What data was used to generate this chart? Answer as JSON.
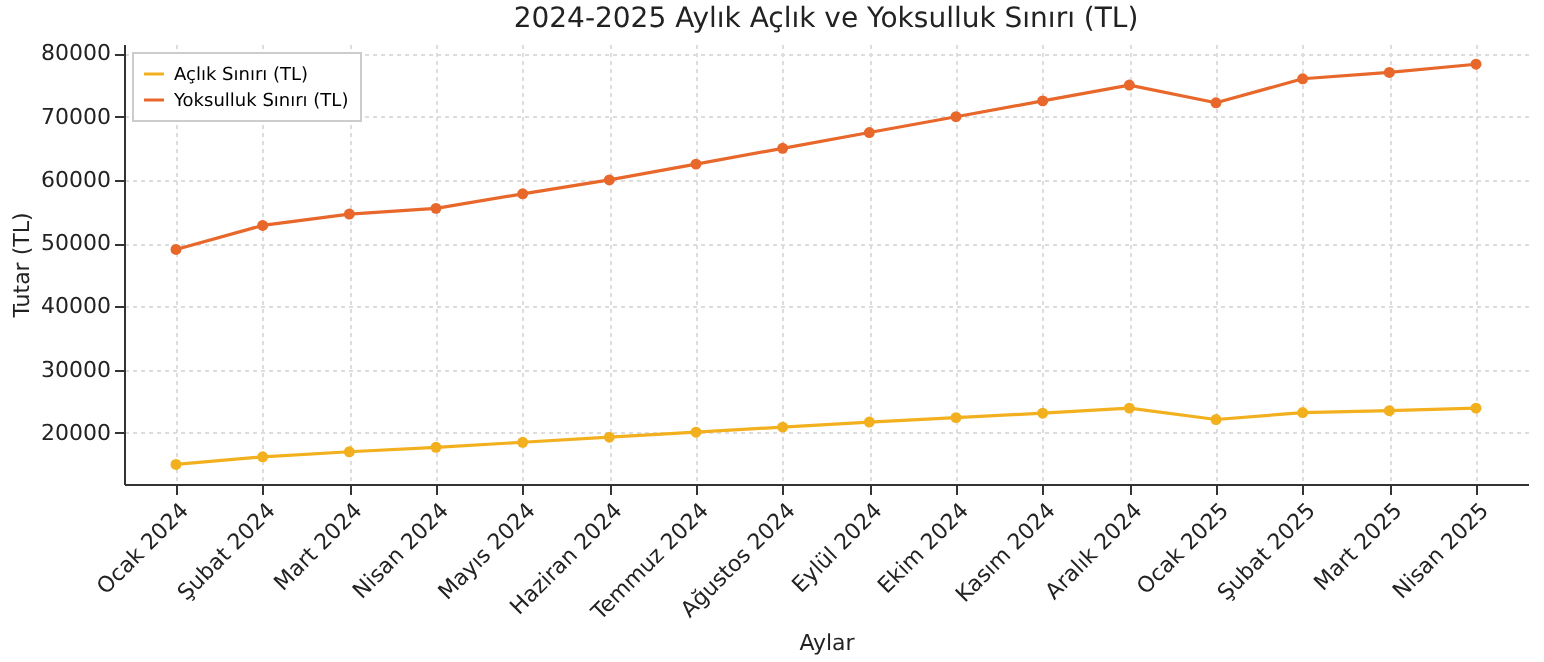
{
  "chart_data": {
    "type": "line",
    "title": "2024-2025 Aylık Açlık ve Yoksulluk Sınırı (TL)",
    "xlabel": "Aylar",
    "ylabel": "Tutar (TL)",
    "categories": [
      "Ocak 2024",
      "Şubat 2024",
      "Mart 2024",
      "Nisan 2024",
      "Mayıs 2024",
      "Haziran 2024",
      "Temmuz 2024",
      "Ağustos 2024",
      "Eylül 2024",
      "Ekim 2024",
      "Kasım 2024",
      "Aralık 2024",
      "Ocak 2025",
      "Şubat 2025",
      "Mart 2025",
      "Nisan 2025"
    ],
    "series": [
      {
        "name": "Açlık Sınırı (TL)",
        "color": "#f2b01e",
        "values": [
          15000,
          16200,
          17000,
          17700,
          18500,
          19300,
          20100,
          20900,
          21700,
          22400,
          23100,
          23900,
          22100,
          23200,
          23500,
          23900
        ]
      },
      {
        "name": "Yoksulluk Sınırı (TL)",
        "color": "#e8672a",
        "values": [
          49000,
          52800,
          54600,
          55500,
          57800,
          60000,
          62500,
          65000,
          67500,
          70000,
          72500,
          75000,
          72200,
          76000,
          77000,
          78300
        ]
      }
    ],
    "ylim": [
      11900,
      81500
    ],
    "yticks": [
      20000,
      30000,
      40000,
      50000,
      60000,
      70000,
      80000
    ],
    "grid": true,
    "legend": "top left",
    "marker": "circle",
    "line_style": "solid"
  }
}
